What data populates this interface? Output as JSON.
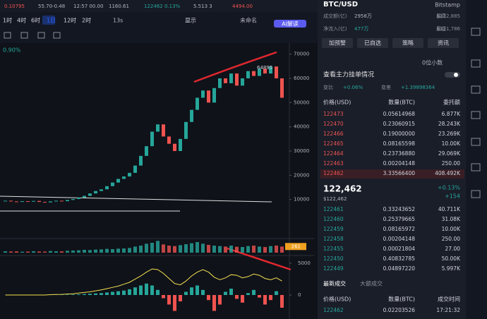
{
  "tickers": [
    "0.10795",
    "55.70-0.48",
    "12:57 00.00",
    "1160.61",
    "122462 0.13%",
    "5.513 3",
    "4494.00"
  ],
  "toolbar": {
    "intervals": [
      "1时",
      "4时",
      "6时",
      "1日",
      "12时",
      "2时"
    ],
    "timer": "13s",
    "display": "显示",
    "layout": "未命名",
    "ai": "AI解读"
  },
  "chart_data": {
    "type": "candlestick",
    "change_label": "0.90%",
    "ylim": [
      0,
      74280
    ],
    "yticks": [
      10000,
      20000,
      30000,
      40000,
      50000,
      60000,
      70000
    ],
    "closes": [
      9500,
      9200,
      9000,
      9300,
      9100,
      9400,
      9000,
      8800,
      9200,
      9500,
      9300,
      9800,
      10200,
      10800,
      11500,
      12500,
      13500,
      14200,
      15500,
      17000,
      18500,
      19500,
      21000,
      24000,
      28000,
      32000,
      38000,
      41000,
      36000,
      33000,
      30000,
      35000,
      42000,
      47000,
      52000,
      55000,
      50000,
      56000,
      60000,
      58000,
      62000,
      57000,
      60000,
      63000,
      61000,
      64000,
      62000,
      64895,
      60000,
      52000
    ],
    "peak_label": "64895",
    "volume": [
      60,
      50,
      55,
      40,
      45,
      60,
      50,
      45,
      70,
      60,
      55,
      80,
      90,
      100,
      120,
      110,
      130,
      140,
      160,
      150,
      170,
      180,
      200,
      260,
      300,
      380,
      420,
      500,
      350,
      300,
      280,
      320,
      360,
      400,
      450,
      380,
      330,
      300,
      280,
      260,
      300,
      250,
      240,
      280,
      300,
      260,
      240,
      280,
      300,
      261
    ],
    "volume_ylim": [
      0,
      600
    ],
    "volume_label": "261",
    "macd_hist": [
      0,
      10,
      -10,
      20,
      0,
      -20,
      10,
      0,
      30,
      20,
      40,
      60,
      80,
      100,
      150,
      200,
      250,
      300,
      400,
      500,
      600,
      700,
      900,
      1200,
      1500,
      1800,
      1500,
      800,
      -500,
      -1500,
      -2500,
      -1000,
      500,
      1200,
      1500,
      800,
      -800,
      -2500,
      -1500,
      500,
      1000,
      -600,
      -1200,
      300,
      800,
      -400,
      -1500,
      -800,
      600,
      -2000
    ],
    "macd_line": [
      0,
      0,
      0,
      0,
      0,
      0,
      0,
      0,
      50,
      80,
      100,
      150,
      200,
      300,
      400,
      500,
      650,
      800,
      1000,
      1200,
      1400,
      1700,
      2000,
      2500,
      3000,
      3600,
      4100,
      4000,
      3400,
      2600,
      1800,
      1600,
      2200,
      3000,
      3600,
      4000,
      3600,
      2800,
      2400,
      2700,
      3200,
      3100,
      2700,
      2900,
      3300,
      3100,
      2600,
      2400,
      2700,
      2200
    ],
    "macd_ylim": [
      -3778,
      6222
    ],
    "macd_yticks": [
      0,
      5000
    ]
  },
  "panel": {
    "symbol": "BTC/USD",
    "exchange": "Bitstamp",
    "stats": [
      [
        "成交额(亿)",
        "2958万",
        "最高",
        "$122,885"
      ],
      [
        "净流入(亿)",
        "477万",
        "最低",
        "$121,786"
      ]
    ],
    "buttons": [
      "加预警",
      "已自选",
      "策略",
      "资讯"
    ],
    "decimals": "0位小数",
    "depth_title": "查看主力挂单情况",
    "ratio": [
      "变比",
      "+0.06%",
      "变差",
      "+1.39898364"
    ],
    "headers": [
      "价格(USD)",
      "数量(BTC)",
      "委托额"
    ],
    "asks": [
      [
        "122473",
        "0.05614968",
        "6.877K"
      ],
      [
        "122470",
        "0.23060915",
        "28.243K"
      ],
      [
        "122466",
        "0.19000000",
        "23.269K"
      ],
      [
        "122465",
        "0.08165598",
        "10.00K"
      ],
      [
        "122464",
        "0.23736880",
        "29.069K"
      ],
      [
        "122463",
        "0.00204148",
        "250.00"
      ],
      [
        "122462",
        "3.33566400",
        "408.492K"
      ]
    ],
    "mid": {
      "price": "122,462",
      "usd": "$122,462",
      "pct": "+0.13%",
      "diff": "+154"
    },
    "bids": [
      [
        "122461",
        "0.33243652",
        "40.711K"
      ],
      [
        "122460",
        "0.25379665",
        "31.08K"
      ],
      [
        "122459",
        "0.08165972",
        "10.00K"
      ],
      [
        "122458",
        "0.00204148",
        "250.00"
      ],
      [
        "122455",
        "0.00021804",
        "27.00"
      ],
      [
        "122450",
        "0.40832785",
        "50.00K"
      ],
      [
        "122449",
        "0.04897220",
        "5.997K"
      ]
    ],
    "trade_tabs": [
      "最新成交",
      "大额成交"
    ],
    "trade_headers": [
      "价格(USD)",
      "数量(BTC)",
      "成交时间"
    ],
    "trades": [
      [
        "122462",
        "0.02203526",
        "17:21:32"
      ]
    ]
  }
}
